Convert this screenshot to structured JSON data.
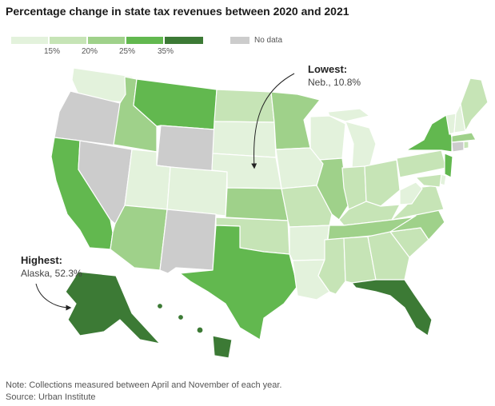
{
  "title": "Percentage change in state tax revenues between 2020 and 2021",
  "legend": {
    "ticks": [
      "15%",
      "20%",
      "25%",
      "35%"
    ],
    "colors": [
      "#e3f2dc",
      "#c6e4b6",
      "#9fd18a",
      "#62b84f",
      "#3c7a35"
    ],
    "no_data_label": "No data",
    "no_data_color": "#cccccc"
  },
  "annotations": {
    "lowest": {
      "title": "Lowest:",
      "detail": "Neb., 10.8%"
    },
    "highest": {
      "title": "Highest:",
      "detail": "Alaska, 52.3%"
    }
  },
  "note": "Note: Collections measured between April and November of each year.",
  "source": "Source: Urban Institute",
  "state_colors": {
    "washington": "#e3f2dc",
    "oregon": "#cccccc",
    "california": "#62b84f",
    "nevada": "#cccccc",
    "idaho": "#9fd18a",
    "montana": "#62b84f",
    "wyoming": "#cccccc",
    "utah": "#e3f2dc",
    "arizona": "#9fd18a",
    "colorado": "#e3f2dc",
    "new-mexico": "#cccccc",
    "north-dakota": "#c6e4b6",
    "south-dakota": "#e3f2dc",
    "nebraska": "#e3f2dc",
    "kansas": "#9fd18a",
    "oklahoma": "#c6e4b6",
    "texas": "#62b84f",
    "minnesota": "#9fd18a",
    "iowa": "#e3f2dc",
    "missouri": "#c6e4b6",
    "arkansas": "#e3f2dc",
    "louisiana": "#e3f2dc",
    "wisconsin": "#e3f2dc",
    "illinois": "#9fd18a",
    "michigan": "#e3f2dc",
    "indiana": "#c6e4b6",
    "ohio": "#c6e4b6",
    "kentucky": "#c6e4b6",
    "tennessee": "#9fd18a",
    "mississippi": "#c6e4b6",
    "alabama": "#c6e4b6",
    "georgia": "#c6e4b6",
    "florida": "#3c7a35",
    "south-carolina": "#c6e4b6",
    "north-carolina": "#9fd18a",
    "virginia": "#c6e4b6",
    "west-virginia": "#e3f2dc",
    "pennsylvania": "#c6e4b6",
    "new-york": "#62b84f",
    "vermont": "#e3f2dc",
    "new-hampshire": "#e3f2dc",
    "maine": "#c6e4b6",
    "massachusetts": "#9fd18a",
    "connecticut": "#cccccc",
    "rhode-island": "#c6e4b6",
    "new-jersey": "#62b84f",
    "maryland": "#c6e4b6",
    "delaware": "#e3f2dc",
    "alaska": "#3c7a35",
    "hawaii": "#3c7a35"
  }
}
